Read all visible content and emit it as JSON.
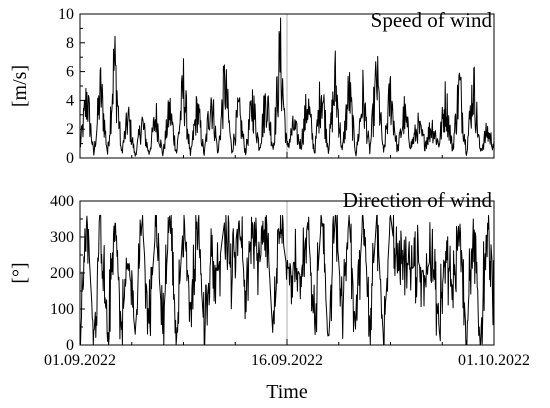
{
  "chart_data": [
    {
      "type": "line",
      "title": "Speed of wind",
      "ylabel": "[m/s]",
      "xlabel": "",
      "ylim": [
        0,
        10
      ],
      "yticks": [
        0,
        2,
        4,
        6,
        8,
        10
      ],
      "xlim": [
        "2022-09-01",
        "2022-10-01"
      ],
      "grid": "vertical line at 16.09.2022",
      "series": [
        {
          "x": [
            "2022-09-01",
            "2022-09-01T12:00",
            "2022-09-02",
            "2022-09-02T12:00",
            "2022-09-03",
            "2022-09-03T12:00",
            "2022-09-04",
            "2022-09-04T12:00",
            "2022-09-05",
            "2022-09-05T12:00",
            "2022-09-06",
            "2022-09-06T12:00",
            "2022-09-07",
            "2022-09-07T12:00",
            "2022-09-08",
            "2022-09-08T12:00",
            "2022-09-09",
            "2022-09-09T12:00",
            "2022-09-10",
            "2022-09-10T12:00",
            "2022-09-11",
            "2022-09-11T12:00",
            "2022-09-12",
            "2022-09-12T12:00",
            "2022-09-13",
            "2022-09-13T12:00",
            "2022-09-14",
            "2022-09-14T12:00",
            "2022-09-15",
            "2022-09-15T12:00",
            "2022-09-16",
            "2022-09-16T12:00",
            "2022-09-17",
            "2022-09-17T12:00",
            "2022-09-18",
            "2022-09-18T12:00",
            "2022-09-19",
            "2022-09-19T12:00",
            "2022-09-20",
            "2022-09-20T12:00",
            "2022-09-21",
            "2022-09-21T12:00",
            "2022-09-22",
            "2022-09-22T12:00",
            "2022-09-23",
            "2022-09-23T12:00",
            "2022-09-24",
            "2022-09-24T12:00",
            "2022-09-25",
            "2022-09-25T12:00",
            "2022-09-26",
            "2022-09-26T12:00",
            "2022-09-27",
            "2022-09-27T12:00",
            "2022-09-28",
            "2022-09-28T12:00",
            "2022-09-29",
            "2022-09-29T12:00",
            "2022-09-30",
            "2022-09-30T12:00",
            "2022-10-01"
          ],
          "y": [
            1.0,
            5.8,
            0.3,
            6.5,
            0.4,
            9.2,
            0.5,
            3.8,
            0.2,
            3.4,
            0.4,
            4.0,
            0.3,
            4.6,
            0.5,
            6.8,
            0.2,
            4.8,
            0.3,
            5.9,
            0.4,
            7.3,
            0.6,
            4.4,
            0.5,
            5.3,
            1.0,
            5.9,
            0.9,
            9.7,
            1.0,
            3.0,
            1.2,
            5.3,
            0.5,
            6.8,
            0.8,
            7.2,
            0.6,
            6.4,
            0.3,
            5.8,
            0.6,
            7.6,
            0.4,
            6.2,
            0.7,
            4.1,
            1.2,
            2.9,
            1.4,
            3.1,
            1.3,
            5.4,
            0.8,
            6.9,
            0.5,
            7.0,
            0.6,
            2.5,
            1.2
          ]
        }
      ]
    },
    {
      "type": "line",
      "title": "Direction of wind",
      "ylabel": "[°]",
      "xlabel": "Time",
      "ylim": [
        0,
        400
      ],
      "yticks": [
        0,
        100,
        200,
        300,
        400
      ],
      "xlim": [
        "2022-09-01",
        "2022-10-01"
      ],
      "xticklabels": [
        "01.09.2022",
        "16.09.2022",
        "01.10.2022"
      ],
      "xtickdates": [
        "2022-09-01",
        "2022-09-16",
        "2022-10-01"
      ],
      "grid": "vertical line at 16.09.2022",
      "series": [
        {
          "x": [
            "2022-09-01",
            "2022-09-01T12:00",
            "2022-09-02",
            "2022-09-02T12:00",
            "2022-09-03",
            "2022-09-03T12:00",
            "2022-09-04",
            "2022-09-04T12:00",
            "2022-09-05",
            "2022-09-05T12:00",
            "2022-09-06",
            "2022-09-06T12:00",
            "2022-09-07",
            "2022-09-07T12:00",
            "2022-09-08",
            "2022-09-08T12:00",
            "2022-09-09",
            "2022-09-09T12:00",
            "2022-09-10",
            "2022-09-10T12:00",
            "2022-09-11",
            "2022-09-11T12:00",
            "2022-09-12",
            "2022-09-12T12:00",
            "2022-09-13",
            "2022-09-13T12:00",
            "2022-09-14",
            "2022-09-14T12:00",
            "2022-09-15",
            "2022-09-15T12:00",
            "2022-09-16",
            "2022-09-16T12:00",
            "2022-09-17",
            "2022-09-17T12:00",
            "2022-09-18",
            "2022-09-18T12:00",
            "2022-09-19",
            "2022-09-19T12:00",
            "2022-09-20",
            "2022-09-20T12:00",
            "2022-09-21",
            "2022-09-21T12:00",
            "2022-09-22",
            "2022-09-22T12:00",
            "2022-09-23",
            "2022-09-23T12:00",
            "2022-09-24",
            "2022-09-24T12:00",
            "2022-09-25",
            "2022-09-25T12:00",
            "2022-09-26",
            "2022-09-26T12:00",
            "2022-09-27",
            "2022-09-27T12:00",
            "2022-09-28",
            "2022-09-28T12:00",
            "2022-09-29",
            "2022-09-29T12:00",
            "2022-09-30",
            "2022-09-30T12:00",
            "2022-10-01"
          ],
          "y": [
            0,
            358,
            20,
            350,
            10,
            355,
            50,
            240,
            30,
            350,
            60,
            330,
            40,
            358,
            20,
            350,
            100,
            360,
            30,
            250,
            200,
            350,
            180,
            360,
            150,
            340,
            220,
            360,
            10,
            350,
            210,
            230,
            190,
            340,
            60,
            355,
            0,
            360,
            100,
            358,
            20,
            360,
            60,
            355,
            10,
            360,
            200,
            240,
            210,
            230,
            190,
            250,
            60,
            260,
            150,
            360,
            20,
            350,
            0,
            355,
            120
          ]
        }
      ]
    }
  ]
}
